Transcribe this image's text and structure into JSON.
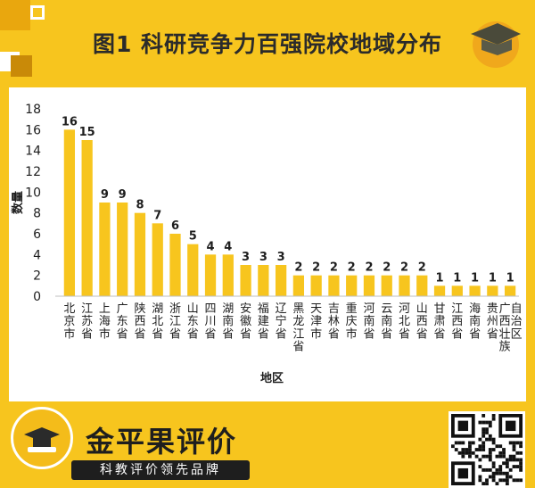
{
  "title": "图1 科研竞争力百强院校地域分布",
  "brand": {
    "name": "金平果评价",
    "slogan": "科教评价领先品牌"
  },
  "colors": {
    "bar": "#F7C51E",
    "background": "#F7C51E",
    "panel": "#FFFFFF",
    "text": "#1E1E1E"
  },
  "chart_data": {
    "type": "bar",
    "xlabel": "地区",
    "ylabel": "数量",
    "ylim": [
      0,
      18
    ],
    "yticks": [
      0,
      2,
      4,
      6,
      8,
      10,
      12,
      14,
      16,
      18
    ],
    "grid": false,
    "categories": [
      "北京市",
      "江苏省",
      "上海市",
      "广东省",
      "陕西省",
      "湖北省",
      "浙江省",
      "山东省",
      "四川省",
      "湖南省",
      "安徽省",
      "福建省",
      "辽宁省",
      "黑龙江省",
      "天津市",
      "吉林省",
      "重庆市",
      "河南省",
      "云南省",
      "河北省",
      "山西省",
      "甘肃省",
      "江西省",
      "海南省",
      "贵州省",
      "广西壮族自治区"
    ],
    "values": [
      16,
      15,
      9,
      9,
      8,
      7,
      6,
      5,
      4,
      4,
      3,
      3,
      3,
      2,
      2,
      2,
      2,
      2,
      2,
      2,
      2,
      1,
      1,
      1,
      1,
      1
    ]
  }
}
